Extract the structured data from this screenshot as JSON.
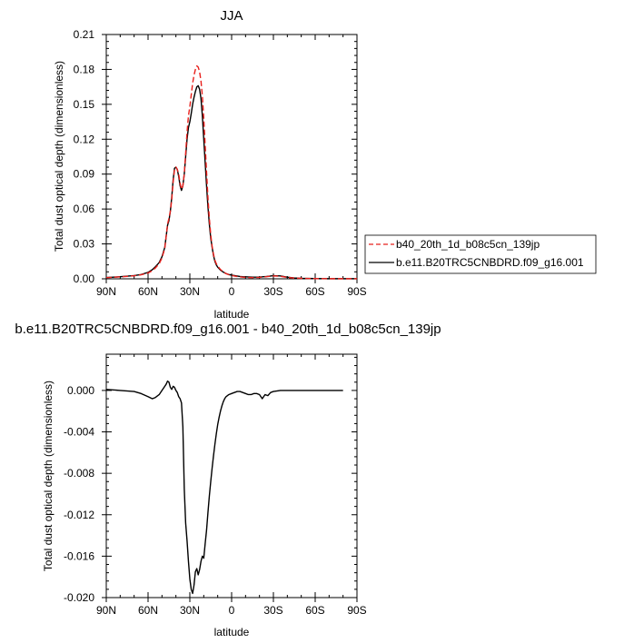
{
  "chart_data": [
    {
      "type": "line",
      "title": "JJA",
      "xlabel": "latitude",
      "ylabel": "Total dust optical depth (dimensionless)",
      "xlim": [
        90,
        -90
      ],
      "ylim": [
        0,
        0.21
      ],
      "x_ticks": [
        90,
        60,
        30,
        0,
        -30,
        -60,
        -90
      ],
      "x_tick_labels": [
        "90N",
        "60N",
        "30N",
        "0",
        "30S",
        "60S",
        "90S"
      ],
      "y_ticks": [
        0,
        0.03,
        0.06,
        0.09,
        0.12,
        0.15,
        0.18,
        0.21
      ],
      "y_tick_labels": [
        "0.00",
        "0.03",
        "0.06",
        "0.09",
        "0.12",
        "0.15",
        "0.18",
        "0.21"
      ],
      "legend_position": "right",
      "series": [
        {
          "name": "b40_20th_1d_b08c5cn_139jp",
          "color": "#e8201c",
          "dash": "dashed",
          "x": [
            90,
            85,
            80,
            75,
            70,
            65,
            60,
            57,
            55,
            52,
            50,
            48,
            46,
            45,
            44,
            43,
            42,
            41,
            40,
            39,
            38,
            37,
            36,
            35,
            34,
            33,
            32,
            31,
            30,
            29,
            28,
            27,
            26,
            25,
            24,
            23,
            22,
            21,
            20,
            19,
            18,
            17,
            16,
            15,
            14,
            13,
            12,
            11,
            10,
            8,
            6,
            4,
            2,
            0,
            -2,
            -4,
            -6,
            -8,
            -10,
            -15,
            -20,
            -25,
            -30,
            -35,
            -40,
            -45,
            -50,
            -60,
            -70,
            -80,
            -90
          ],
          "y": [
            0.001,
            0.0013,
            0.0017,
            0.0021,
            0.0026,
            0.0035,
            0.005,
            0.007,
            0.009,
            0.013,
            0.018,
            0.026,
            0.047,
            0.052,
            0.058,
            0.068,
            0.083,
            0.094,
            0.096,
            0.094,
            0.09,
            0.082,
            0.077,
            0.08,
            0.09,
            0.108,
            0.126,
            0.14,
            0.148,
            0.158,
            0.168,
            0.175,
            0.18,
            0.183,
            0.182,
            0.178,
            0.17,
            0.157,
            0.138,
            0.115,
            0.092,
            0.07,
            0.052,
            0.038,
            0.028,
            0.021,
            0.016,
            0.013,
            0.011,
            0.008,
            0.006,
            0.0045,
            0.0035,
            0.003,
            0.0024,
            0.002,
            0.0017,
            0.0014,
            0.0012,
            0.001,
            0.0012,
            0.0018,
            0.0025,
            0.0022,
            0.0012,
            0.0006,
            0.0004,
            0.0002,
            0.0001,
            0.0001,
            0.0001
          ]
        },
        {
          "name": "b.e11.B20TRC5CNBDRD.f09_g16.001",
          "color": "#000000",
          "dash": "solid",
          "x": [
            90,
            85,
            80,
            75,
            70,
            65,
            60,
            57,
            55,
            52,
            50,
            48,
            46,
            45,
            44,
            43,
            42,
            41,
            40,
            39,
            38,
            37,
            36,
            35,
            34,
            33,
            32,
            31,
            30,
            29,
            28,
            27,
            26,
            25,
            24,
            23,
            22,
            21,
            20,
            19,
            18,
            17,
            16,
            15,
            14,
            13,
            12,
            11,
            10,
            8,
            6,
            4,
            2,
            0,
            -2,
            -4,
            -6,
            -8,
            -10,
            -15,
            -20,
            -25,
            -30,
            -35,
            -40,
            -45,
            -50,
            -60,
            -70,
            -80,
            -90
          ],
          "y": [
            0.0011,
            0.0014,
            0.0018,
            0.0023,
            0.0028,
            0.0037,
            0.0055,
            0.0078,
            0.01,
            0.014,
            0.019,
            0.027,
            0.046,
            0.05,
            0.058,
            0.07,
            0.085,
            0.095,
            0.096,
            0.094,
            0.088,
            0.08,
            0.076,
            0.08,
            0.09,
            0.105,
            0.12,
            0.13,
            0.135,
            0.142,
            0.15,
            0.156,
            0.161,
            0.165,
            0.166,
            0.163,
            0.155,
            0.14,
            0.12,
            0.1,
            0.08,
            0.062,
            0.047,
            0.035,
            0.027,
            0.02,
            0.015,
            0.012,
            0.01,
            0.0075,
            0.0058,
            0.0045,
            0.0037,
            0.0032,
            0.0028,
            0.0024,
            0.002,
            0.0018,
            0.0017,
            0.0014,
            0.0015,
            0.002,
            0.0027,
            0.0025,
            0.0014,
            0.0007,
            0.0004,
            0.0002,
            0.0001,
            0.0001,
            0.0001
          ]
        }
      ]
    },
    {
      "type": "line",
      "title": "b.e11.B20TRC5CNBDRD.f09_g16.001 - b40_20th_1d_b08c5cn_139jp",
      "xlabel": "latitude",
      "ylabel": "Total dust optical depth (dimensionless)",
      "xlim": [
        90,
        -90
      ],
      "ylim": [
        -0.02,
        0.0035
      ],
      "x_ticks": [
        90,
        60,
        30,
        0,
        -30,
        -60,
        -90
      ],
      "x_tick_labels": [
        "90N",
        "60N",
        "30N",
        "0",
        "30S",
        "60S",
        "90S"
      ],
      "y_ticks": [
        0,
        -0.004,
        -0.008,
        -0.012,
        -0.016,
        -0.02
      ],
      "y_tick_labels": [
        "0.000",
        "-0.004",
        "-0.008",
        "-0.012",
        "-0.016",
        "-0.020"
      ],
      "series": [
        {
          "color": "#000000",
          "dash": "solid",
          "x": [
            90,
            80,
            70,
            65,
            60,
            57,
            55,
            52,
            50,
            48,
            47,
            46,
            45,
            44,
            43,
            42,
            41,
            40,
            39,
            38,
            37,
            36,
            35,
            34,
            33,
            32,
            31,
            30,
            29,
            28,
            27,
            26,
            25,
            24,
            23,
            22,
            21,
            20,
            19,
            18,
            17,
            16,
            15,
            14,
            13,
            12,
            11,
            10,
            9,
            8,
            7,
            6,
            5,
            4,
            2,
            0,
            -2,
            -4,
            -6,
            -8,
            -10,
            -12,
            -14,
            -16,
            -18,
            -20,
            -22,
            -24,
            -26,
            -28,
            -30,
            -35,
            -40,
            -50,
            -60,
            -70,
            -80
          ],
          "y": [
            0.0001,
            0.0,
            -0.0001,
            -0.0003,
            -0.0006,
            -0.0008,
            -0.0007,
            -0.0004,
            0.0,
            0.0004,
            0.0006,
            0.0009,
            0.0008,
            0.0003,
            0.0001,
            0.0004,
            0.0003,
            0.0,
            -0.0002,
            -0.0006,
            -0.0008,
            -0.0012,
            -0.0035,
            -0.0095,
            -0.0128,
            -0.0145,
            -0.0165,
            -0.0182,
            -0.0192,
            -0.0196,
            -0.0188,
            -0.0175,
            -0.0172,
            -0.0178,
            -0.0173,
            -0.0165,
            -0.016,
            -0.0162,
            -0.0148,
            -0.0135,
            -0.0118,
            -0.0102,
            -0.0088,
            -0.0075,
            -0.0063,
            -0.0052,
            -0.0042,
            -0.0033,
            -0.0026,
            -0.002,
            -0.0015,
            -0.0011,
            -0.0008,
            -0.0006,
            -0.0004,
            -0.0003,
            -0.0002,
            -0.0001,
            -0.0001,
            -0.0002,
            -0.0003,
            -0.0004,
            -0.0004,
            -0.0003,
            -0.0003,
            -0.0004,
            -0.0008,
            -0.0004,
            -0.0005,
            -0.0002,
            -0.0001,
            0.0,
            0.0,
            0.0,
            0.0,
            0.0,
            0.0
          ]
        }
      ]
    }
  ],
  "legend": {
    "entry_1": "b40_20th_1d_b08c5cn_139jp",
    "entry_2": "b.e11.B20TRC5CNBDRD.f09_g16.001"
  }
}
